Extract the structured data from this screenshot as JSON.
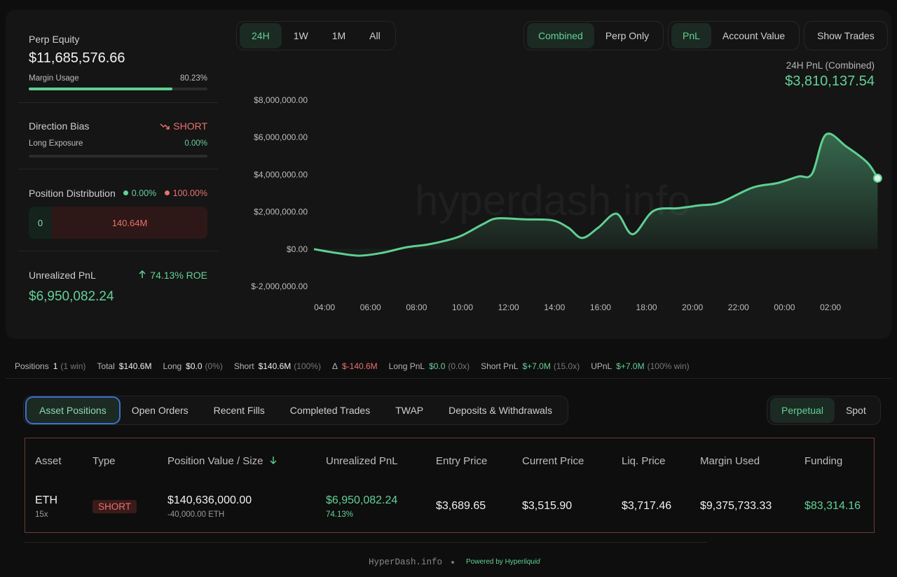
{
  "summary": {
    "perp_equity": {
      "label": "Perp Equity",
      "value": "$11,685,576.66"
    },
    "margin_usage": {
      "label": "Margin Usage",
      "value": 80.23,
      "value_label": "80.23%"
    },
    "direction_bias": {
      "label": "Direction Bias",
      "value": "SHORT"
    },
    "long_exposure": {
      "label": "Long Exposure",
      "value": 0,
      "value_label": "0.00%"
    },
    "position_distribution": {
      "label": "Position Distribution",
      "long_pct": "0.00%",
      "short_pct": "100.00%",
      "long_value": "0",
      "short_value": "140.64M"
    },
    "unrealized_pnl": {
      "label": "Unrealized PnL",
      "roe": "74.13% ROE",
      "value": "$6,950,082.24"
    }
  },
  "controls": {
    "range": [
      "24H",
      "1W",
      "1M",
      "All"
    ],
    "scope": [
      "Combined",
      "Perp Only"
    ],
    "metric": [
      "PnL",
      "Account Value"
    ],
    "show_trades": "Show Trades"
  },
  "pnl_header": {
    "label": "24H PnL (Combined)",
    "value": "$3,810,137.54"
  },
  "watermark": "hyperdash.info",
  "chart_data": {
    "type": "area",
    "color": "#5fcf92",
    "x": [
      -0.46,
      0.5,
      1.5,
      2.5,
      3.56,
      4.5,
      5.4,
      6.0,
      6.9,
      7.5,
      8.7,
      9.9,
      10.6,
      11.2,
      11.9,
      12.7,
      13.4,
      14.3,
      15.4,
      16.3,
      17.2,
      18.6,
      19.7,
      20.6,
      21.2,
      21.8,
      22.7,
      23.6,
      24.05
    ],
    "values": [
      0,
      -200000,
      -350000,
      -200000,
      100000,
      250000,
      500000,
      750000,
      1350000,
      1650000,
      1600000,
      1550000,
      1150000,
      600000,
      1150000,
      1900000,
      800000,
      2050000,
      2200000,
      2350000,
      2500000,
      3300000,
      3550000,
      3900000,
      4050000,
      6150000,
      5500000,
      4650000,
      3810137.54
    ],
    "xlim": [
      -0.46,
      24.1
    ],
    "xticks": [
      {
        "value": 0,
        "label": "04:00"
      },
      {
        "value": 2,
        "label": "06:00"
      },
      {
        "value": 4,
        "label": "08:00"
      },
      {
        "value": 6,
        "label": "10:00"
      },
      {
        "value": 8,
        "label": "12:00"
      },
      {
        "value": 10,
        "label": "14:00"
      },
      {
        "value": 12,
        "label": "16:00"
      },
      {
        "value": 14,
        "label": "18:00"
      },
      {
        "value": 16,
        "label": "20:00"
      },
      {
        "value": 18,
        "label": "22:00"
      },
      {
        "value": 20,
        "label": "00:00"
      },
      {
        "value": 22,
        "label": "02:00"
      }
    ],
    "ylim": [
      -2000000,
      8000000
    ],
    "yticks": [
      {
        "value": 8000000,
        "label": "$8,000,000.00"
      },
      {
        "value": 6000000,
        "label": "$6,000,000.00"
      },
      {
        "value": 4000000,
        "label": "$4,000,000.00"
      },
      {
        "value": 2000000,
        "label": "$2,000,000.00"
      },
      {
        "value": 0,
        "label": "$0.00"
      },
      {
        "value": -2000000,
        "label": "$-2,000,000.00"
      }
    ]
  },
  "stats": [
    {
      "label": "Positions",
      "value": "1",
      "note": "(1 win)"
    },
    {
      "label": "Total",
      "value": "$140.6M"
    },
    {
      "label": "Long",
      "value": "$0.0",
      "note": "(0%)"
    },
    {
      "label": "Short",
      "value": "$140.6M",
      "note": "(100%)"
    },
    {
      "label": "Δ",
      "value": "$-140.6M",
      "tone": "red"
    },
    {
      "label": "Long PnL",
      "value": "$0.0",
      "note": "(0.0x)",
      "tone": "green"
    },
    {
      "label": "Short PnL",
      "value": "$+7.0M",
      "note": "(15.0x)",
      "tone": "green"
    },
    {
      "label": "UPnL",
      "value": "$+7.0M",
      "note": "(100% win)",
      "tone": "green"
    }
  ],
  "tabs": [
    "Asset Positions",
    "Open Orders",
    "Recent Fills",
    "Completed Trades",
    "TWAP",
    "Deposits & Withdrawals"
  ],
  "market_tabs": [
    "Perpetual",
    "Spot"
  ],
  "table": {
    "headers": [
      "Asset",
      "Type",
      "Position Value / Size",
      "Unrealized PnL",
      "Entry Price",
      "Current Price",
      "Liq. Price",
      "Margin Used",
      "Funding"
    ],
    "rows": [
      [
        {
          "main": "ETH",
          "sub": "15x"
        },
        {
          "main": "SHORT"
        },
        {
          "main": "$140,636,000.00",
          "sub": "-40,000.00 ETH"
        },
        {
          "main": "$6,950,082.24",
          "sub": "74.13%"
        },
        {
          "main": "$3,689.65"
        },
        {
          "main": "$3,515.90"
        },
        {
          "main": "$3,717.46"
        },
        {
          "main": "$9,375,733.33"
        },
        {
          "main": "$83,314.16"
        }
      ]
    ]
  },
  "footer": {
    "brand": "HyperDash.info",
    "powered_prefix": "Powered by Hyper",
    "powered_suffix": "liquid"
  }
}
